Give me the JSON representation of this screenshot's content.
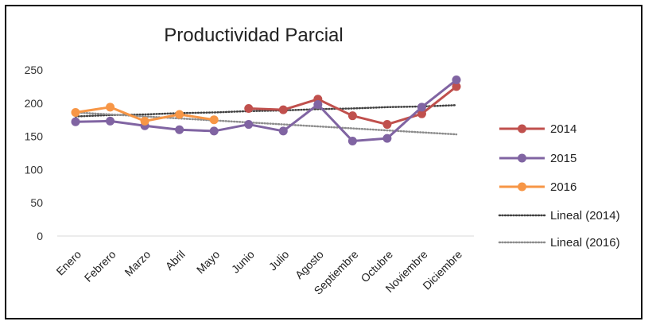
{
  "chart_data": {
    "type": "line",
    "title": "Productividad Parcial",
    "xlabel": "",
    "ylabel": "",
    "categories": [
      "Enero",
      "Febrero",
      "Marzo",
      "Abril",
      "Mayo",
      "Junio",
      "Julio",
      "Agosto",
      "Septiembre",
      "Octubre",
      "Noviembre",
      "Diciembre"
    ],
    "ylim": [
      0,
      250
    ],
    "yticks": [
      0,
      50,
      100,
      150,
      200,
      250
    ],
    "grid": false,
    "legend_position": "right",
    "series": [
      {
        "name": "2014",
        "color": "#c0504d",
        "values": [
          null,
          null,
          null,
          null,
          null,
          192,
          190,
          206,
          181,
          168,
          184,
          225
        ]
      },
      {
        "name": "2015",
        "color": "#8064a2",
        "values": [
          172,
          173,
          166,
          160,
          158,
          168,
          158,
          198,
          143,
          147,
          194,
          235
        ]
      },
      {
        "name": "2016",
        "color": "#f79646",
        "values": [
          186,
          194,
          173,
          183,
          175,
          null,
          null,
          null,
          null,
          null,
          null,
          null
        ]
      }
    ],
    "trendlines": [
      {
        "name": "Lineal (2014)",
        "color": "#404040",
        "values": [
          180,
          182,
          183,
          185,
          186,
          188,
          189,
          191,
          192,
          194,
          195,
          197
        ]
      },
      {
        "name": "Lineal (2016)",
        "color": "#8c8c8c",
        "values": [
          186,
          183,
          180,
          177,
          174,
          171,
          168,
          165,
          162,
          159,
          156,
          153
        ]
      }
    ]
  }
}
